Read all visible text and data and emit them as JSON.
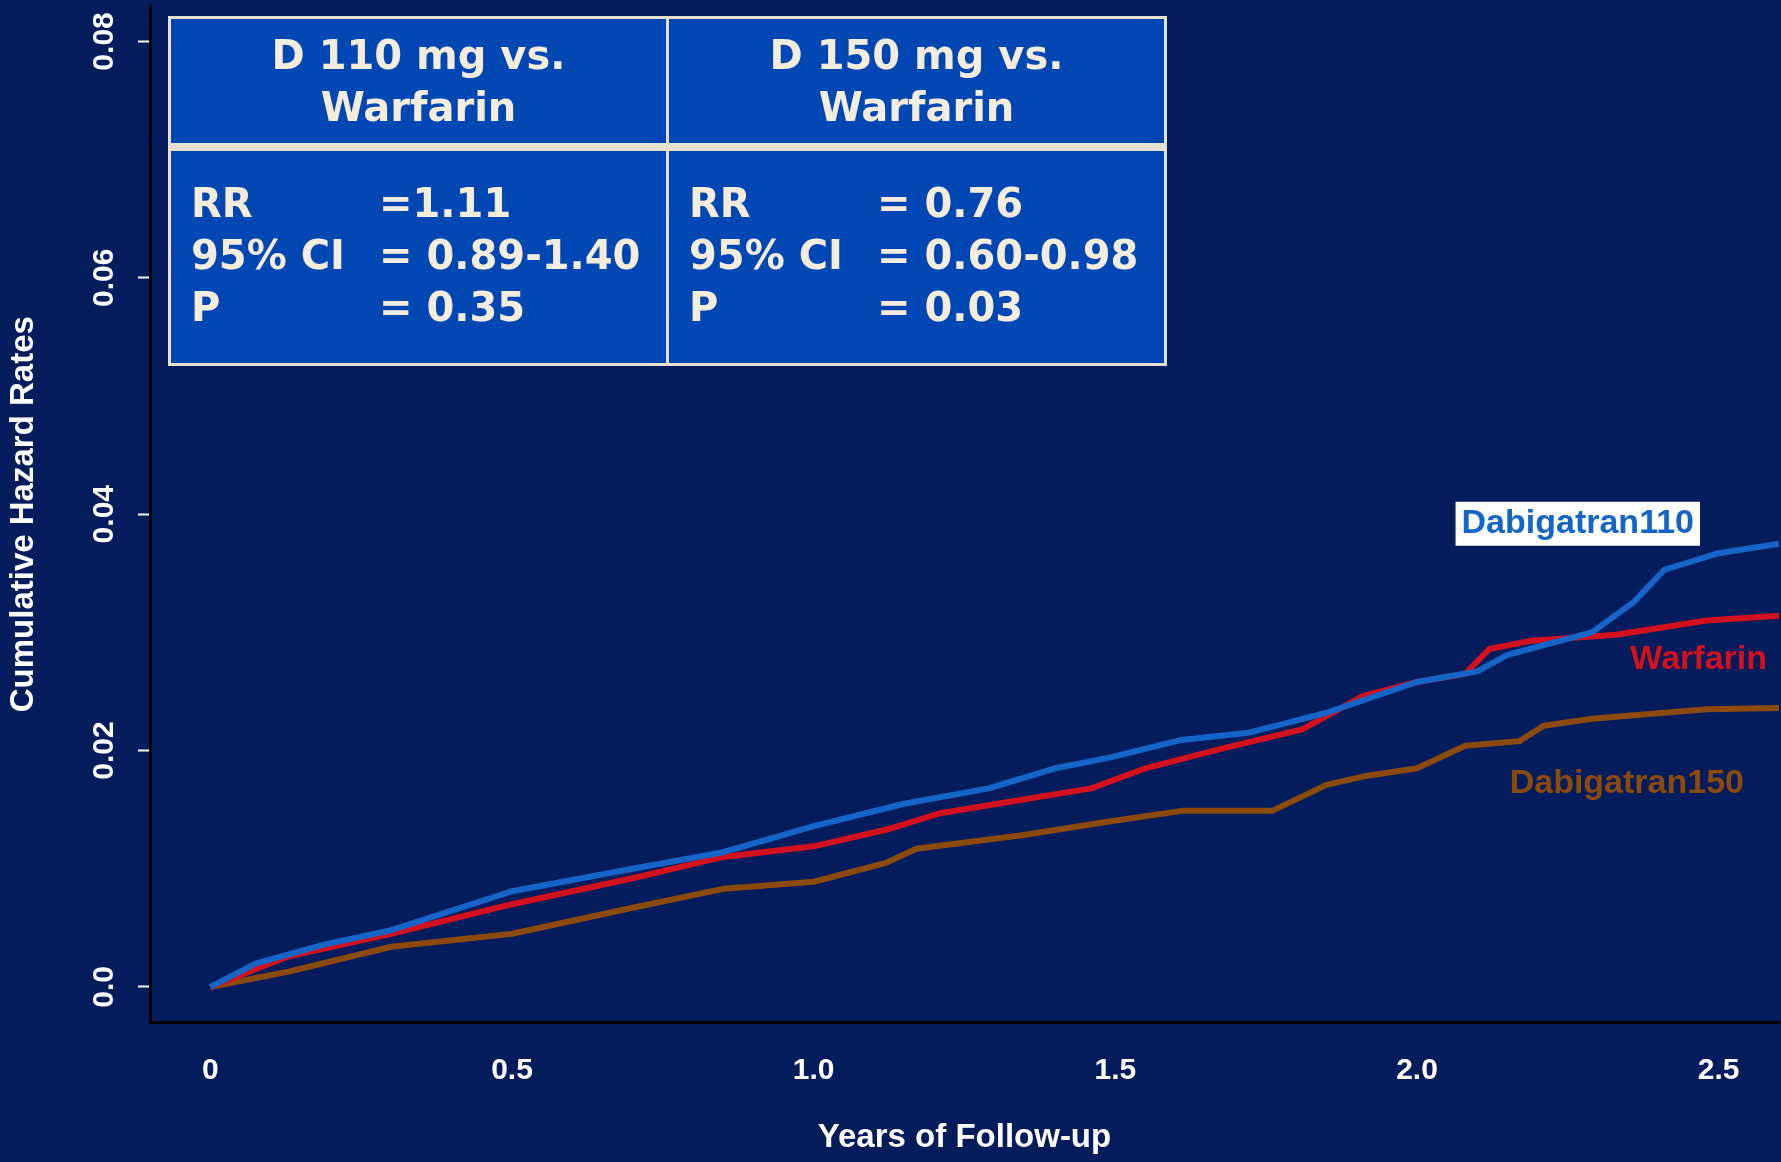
{
  "chart_data": {
    "type": "line",
    "xlabel": "Years of Follow-up",
    "ylabel": "Cumulative Hazard Rates",
    "xlim": [
      -0.1,
      2.6
    ],
    "ylim": [
      -0.003,
      0.083
    ],
    "xticks": [
      0,
      0.5,
      {
        "value": 1,
        "label": "1.0"
      },
      1.5,
      {
        "value": 2,
        "label": "2.0"
      },
      2.5
    ],
    "yticks": [
      {
        "value": 0,
        "label": "0.0"
      },
      0.02,
      0.04,
      0.06,
      0.08
    ],
    "grid": false,
    "legend": false,
    "marker": "none",
    "line_style": "solid",
    "annotations": [
      "D 110 mg vs. Warfarin",
      "D 150 mg vs. Warfarin",
      "RR =1.11",
      "RR = 0.76",
      "95% CI = 0.89-1.40",
      "95% CI = 0.60-0.98",
      "P = 0.35",
      "P = 0.03"
    ],
    "series": [
      {
        "name": "Dabigatran110",
        "color": "#1565c8",
        "x": [
          0,
          0.076,
          0.19,
          0.3,
          0.5,
          0.7,
          0.85,
          1.0,
          1.15,
          1.29,
          1.4,
          1.49,
          1.61,
          1.72,
          1.85,
          2.0,
          2.1,
          2.15,
          2.29,
          2.36,
          2.41,
          2.5,
          2.6
        ],
        "values": [
          0,
          0.002,
          0.0036,
          0.0048,
          0.0081,
          0.01,
          0.0114,
          0.0136,
          0.0155,
          0.0168,
          0.0185,
          0.0194,
          0.0209,
          0.0215,
          0.0232,
          0.0258,
          0.0267,
          0.0281,
          0.03,
          0.0326,
          0.0353,
          0.0367,
          0.0375
        ]
      },
      {
        "name": "Warfarin",
        "color": "#d2101e",
        "x": [
          0,
          0.13,
          0.3,
          0.5,
          0.7,
          0.85,
          1.0,
          1.12,
          1.21,
          1.34,
          1.46,
          1.55,
          1.68,
          1.81,
          1.91,
          2.0,
          2.08,
          2.12,
          2.19,
          2.33,
          2.48,
          2.6
        ],
        "values": [
          0,
          0.0026,
          0.0045,
          0.007,
          0.0092,
          0.011,
          0.0119,
          0.0133,
          0.0147,
          0.0158,
          0.0168,
          0.0185,
          0.0202,
          0.0218,
          0.0246,
          0.0258,
          0.0265,
          0.0286,
          0.0293,
          0.0298,
          0.031,
          0.0314
        ]
      },
      {
        "name": "Dabigatran150",
        "color": "#8b4a0b",
        "x": [
          0,
          0.13,
          0.3,
          0.5,
          0.7,
          0.85,
          1.0,
          1.12,
          1.17,
          1.34,
          1.49,
          1.61,
          1.76,
          1.85,
          1.91,
          2.0,
          2.08,
          2.17,
          2.21,
          2.29,
          2.48,
          2.6
        ],
        "values": [
          0,
          0.0013,
          0.0034,
          0.0045,
          0.0067,
          0.0083,
          0.0089,
          0.0105,
          0.0117,
          0.0128,
          0.014,
          0.0149,
          0.0149,
          0.0171,
          0.0178,
          0.0185,
          0.0204,
          0.0208,
          0.0221,
          0.0227,
          0.0235,
          0.0236
        ]
      }
    ]
  }
}
